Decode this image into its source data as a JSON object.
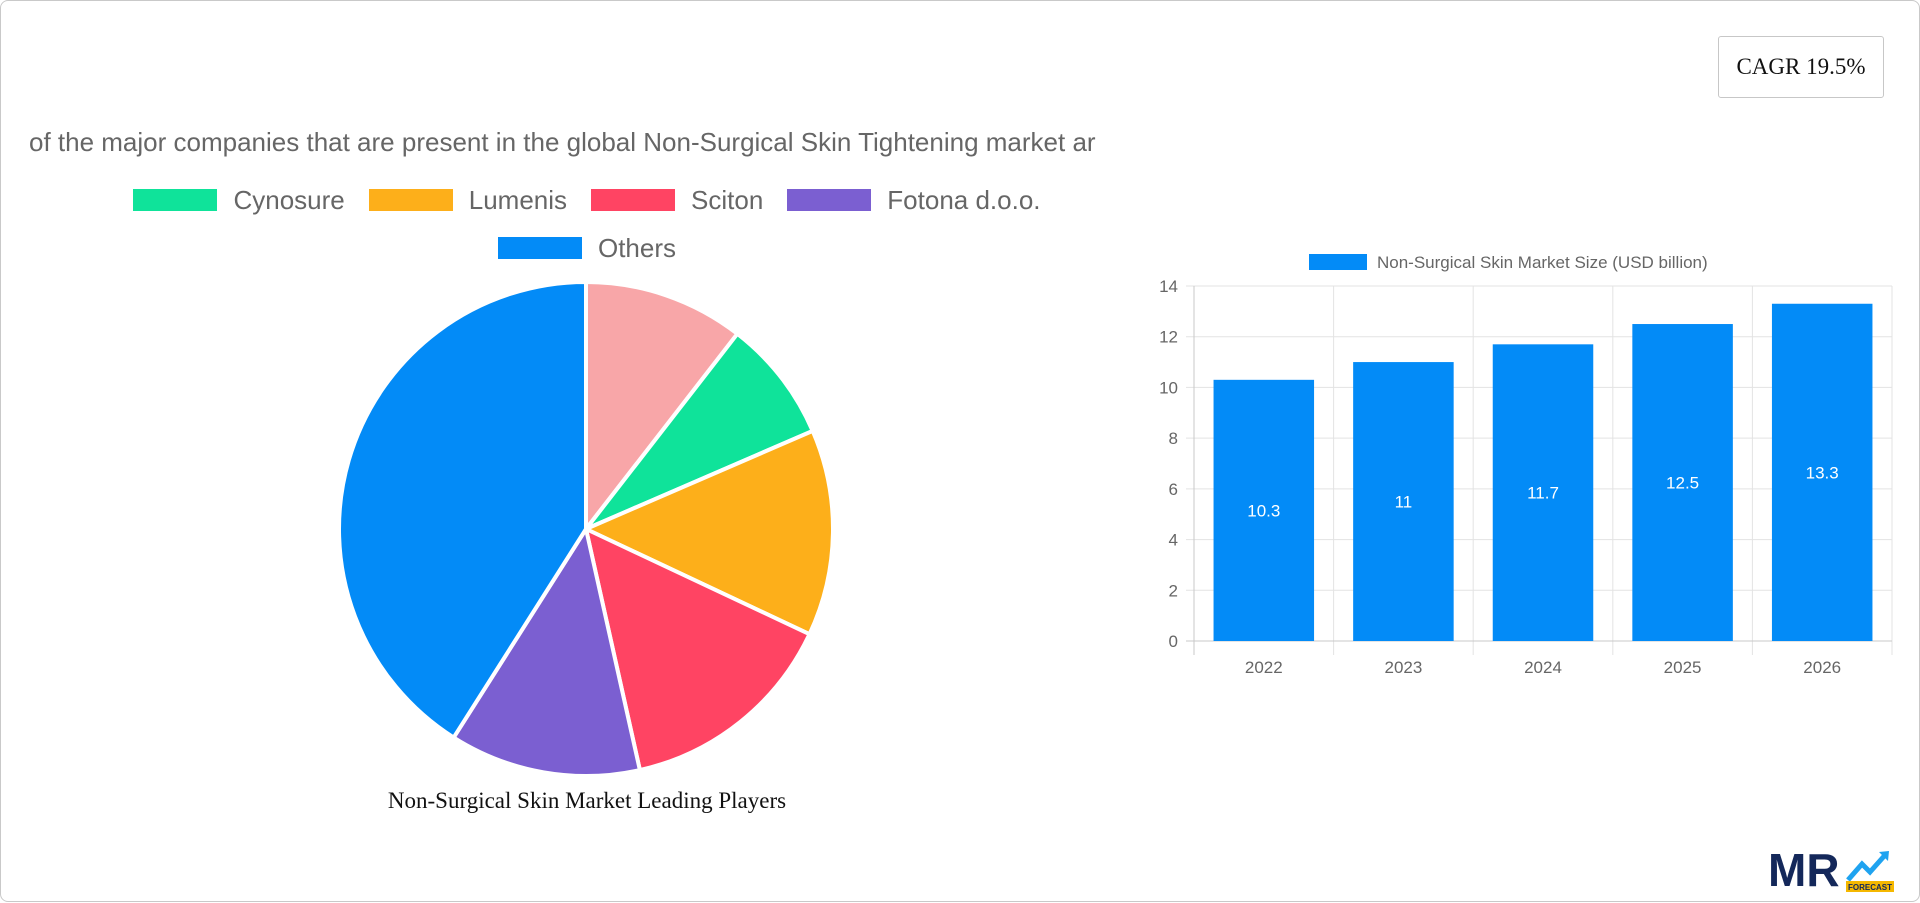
{
  "cagr": {
    "label": "CAGR 19.5%"
  },
  "chart_data": [
    {
      "type": "pie",
      "title": "of the major companies that are present in the global Non-Surgical Skin Tightening market ar",
      "caption": "Non-Surgical Skin Market Leading Players",
      "legend": [
        {
          "label": "Cynosure",
          "color": "#0fe39a"
        },
        {
          "label": "Lumenis",
          "color": "#fdaf1a"
        },
        {
          "label": "Sciton",
          "color": "#ff4463"
        },
        {
          "label": "Fotona d.o.o.",
          "color": "#7b5fd1"
        },
        {
          "label": "Others",
          "color": "#038bf7"
        }
      ],
      "slices": [
        {
          "label": "",
          "value": 10.5,
          "color": "#f8a6a8"
        },
        {
          "label": "Cynosure",
          "value": 8,
          "color": "#0fe39a"
        },
        {
          "label": "Lumenis",
          "value": 13.5,
          "color": "#fdaf1a"
        },
        {
          "label": "Sciton",
          "value": 14.5,
          "color": "#ff4463"
        },
        {
          "label": "Fotona d.o.o.",
          "value": 12.5,
          "color": "#7b5fd1"
        },
        {
          "label": "Others",
          "value": 41,
          "color": "#038bf7"
        }
      ]
    },
    {
      "type": "bar",
      "legend_label": "Non-Surgical Skin Market Size (USD billion)",
      "legend_placement": "top-center",
      "color": "#038bf7",
      "categories": [
        "2022",
        "2023",
        "2024",
        "2025",
        "2026"
      ],
      "values": [
        10.3,
        11,
        11.7,
        12.5,
        13.3
      ],
      "value_labels": [
        "10.3",
        "11",
        "11.7",
        "12.5",
        "13.3"
      ],
      "ylim": [
        0,
        14
      ],
      "yticks": [
        "0",
        "2",
        "4",
        "6",
        "8",
        "10",
        "12",
        "14"
      ],
      "grid": true
    }
  ],
  "logo": {
    "text": "MR",
    "subtext": "FORECAST"
  }
}
